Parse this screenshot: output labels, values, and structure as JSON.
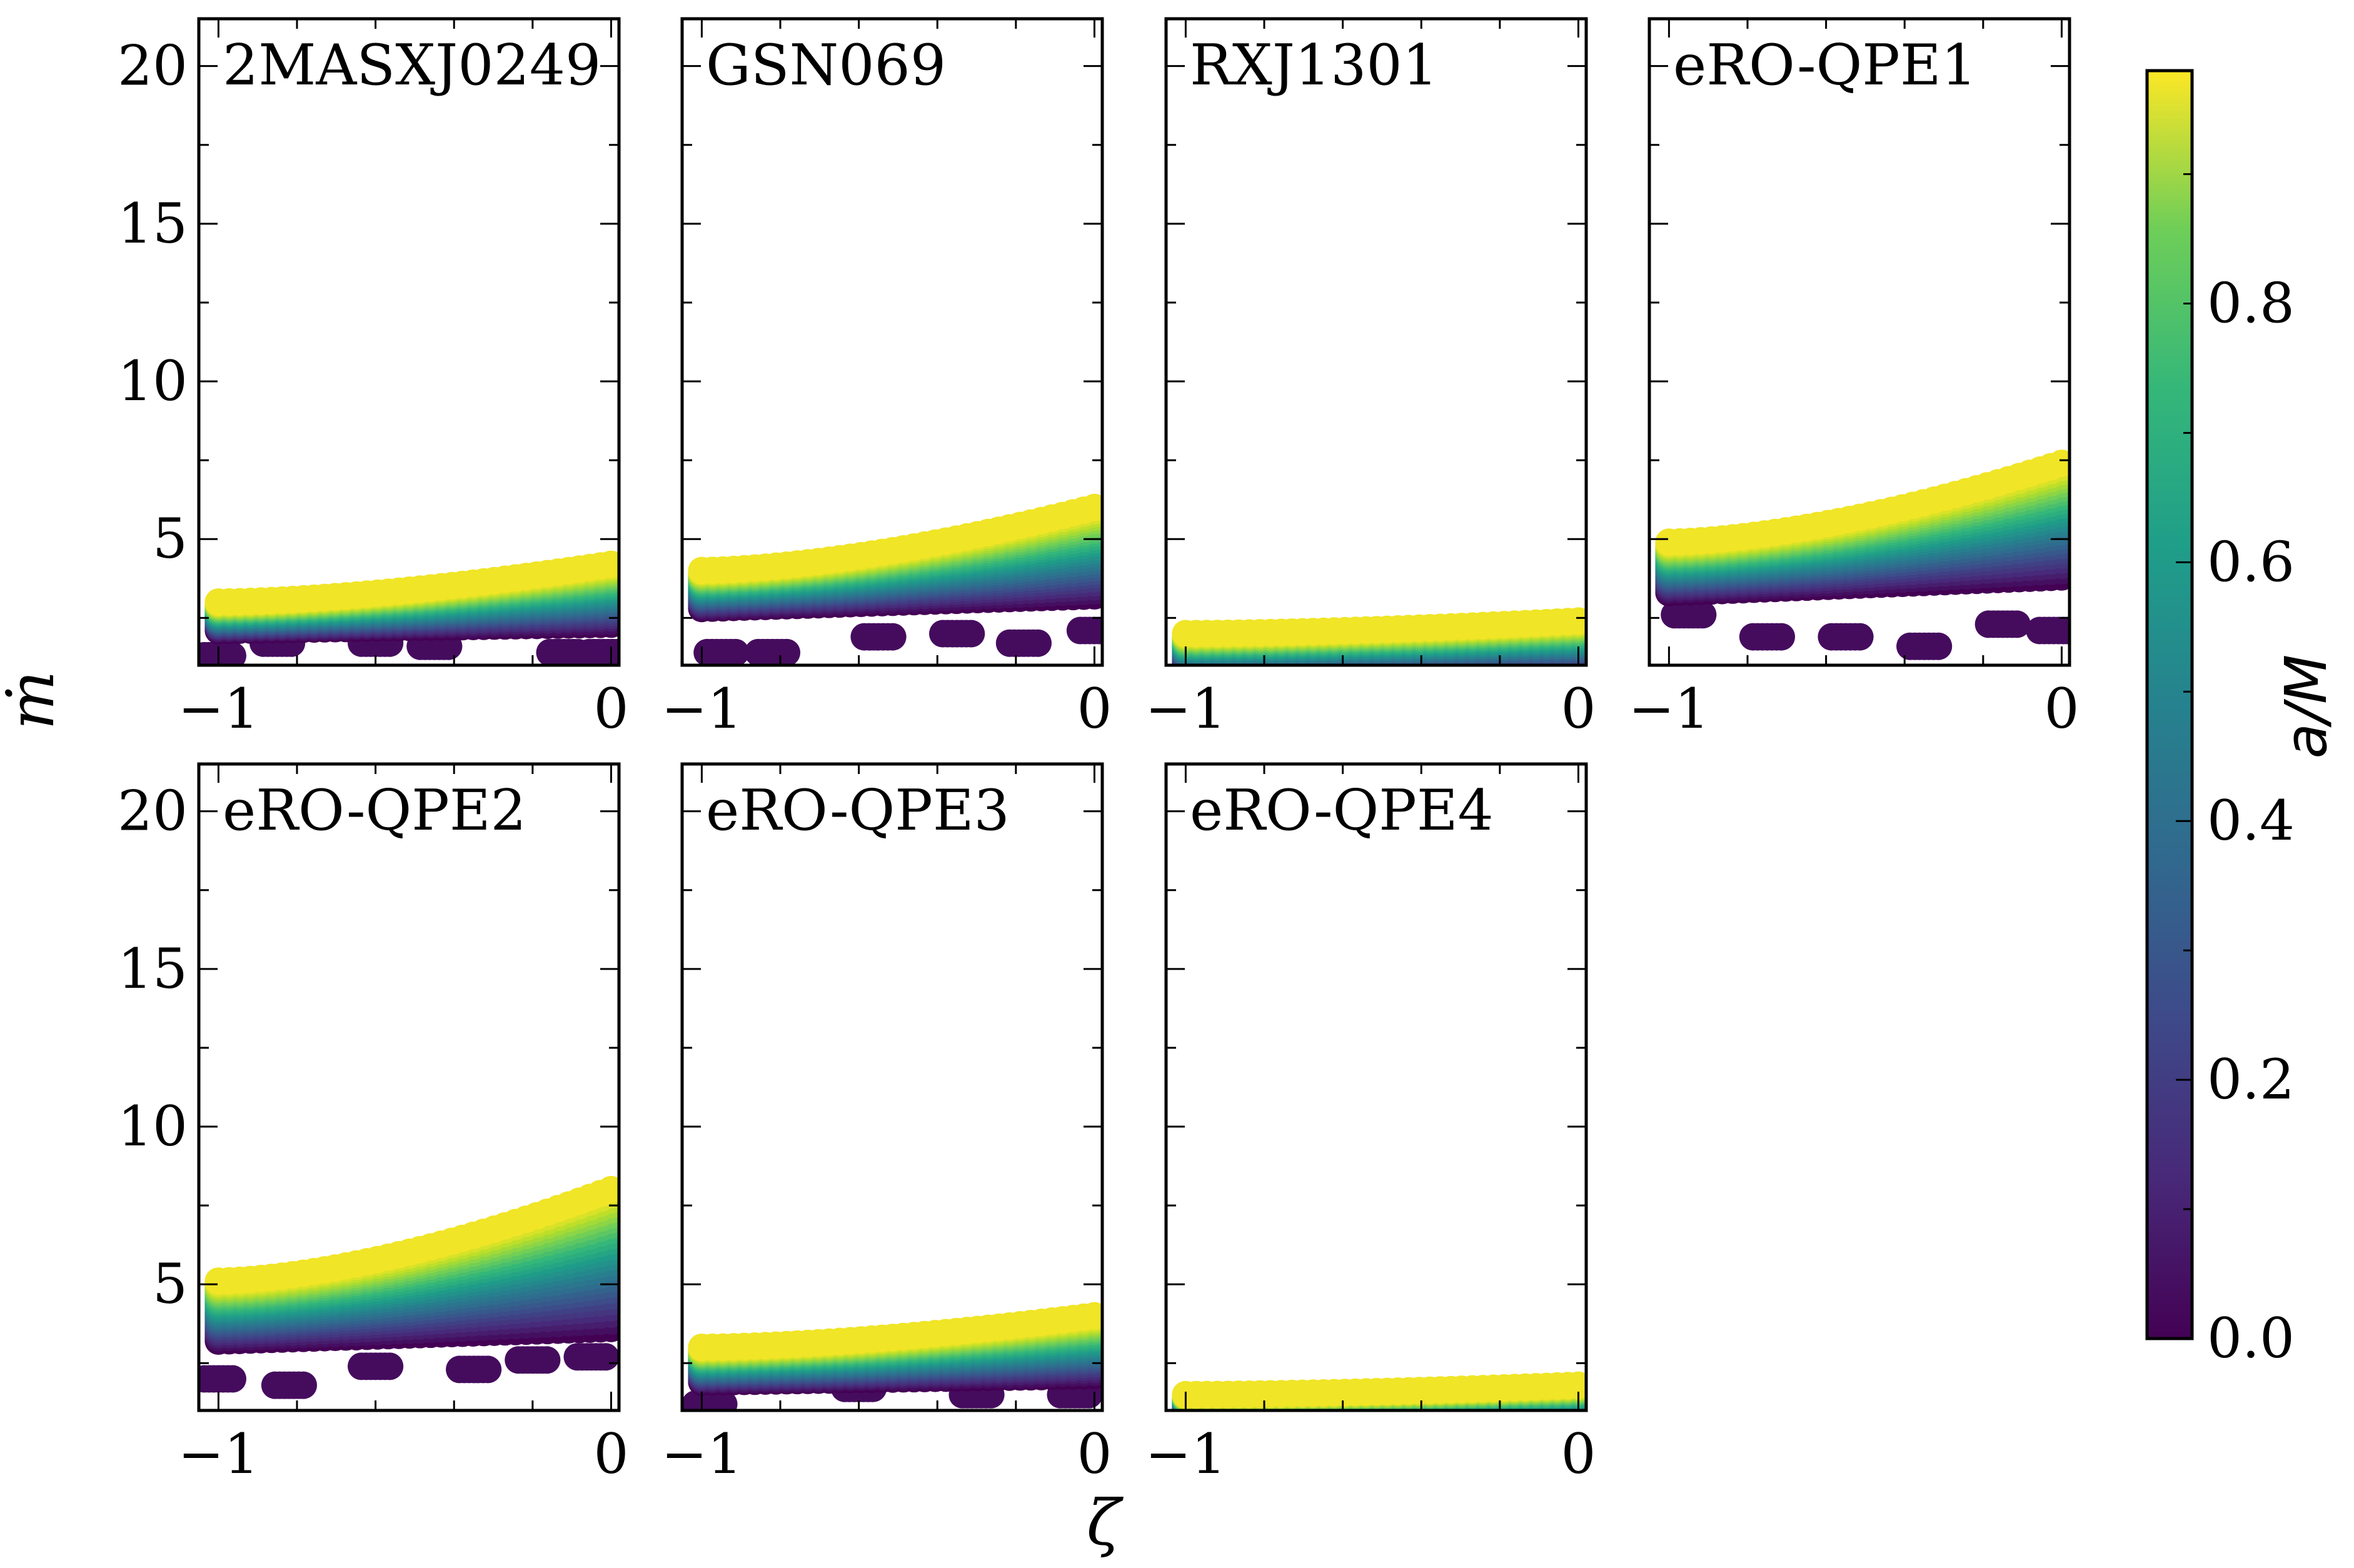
{
  "chart_data": {
    "type": "scatter",
    "xlabel": "ζ",
    "ylabel": "ṁ",
    "xlim": [
      -1.05,
      0.02
    ],
    "ylim": [
      1,
      21.5
    ],
    "xticks": [
      -1,
      0
    ],
    "xtick_labels": [
      "−1",
      "0"
    ],
    "yticks": [
      5,
      10,
      15,
      20
    ],
    "ytick_labels": [
      "5",
      "10",
      "15",
      "20"
    ],
    "colorbar": {
      "label": "a/M",
      "colormap": "viridis",
      "range": [
        0,
        0.98
      ],
      "ticks": [
        0.0,
        0.2,
        0.4,
        0.6,
        0.8
      ],
      "tick_labels": [
        "0.0",
        "0.2",
        "0.4",
        "0.6",
        "0.8"
      ]
    },
    "panels": [
      {
        "name": "2MASXJ0249",
        "mdot_low_at_zeta_-1": 2.1,
        "mdot_high_at_zeta_-1": 3.0,
        "mdot_low_at_zeta_0": 2.3,
        "mdot_high_at_zeta_0": 4.2,
        "low_spin_clusters": [
          [
            -1.0,
            1.3
          ],
          [
            -0.85,
            1.7
          ],
          [
            -0.6,
            1.7
          ],
          [
            -0.45,
            1.6
          ],
          [
            -0.12,
            1.4
          ],
          [
            -0.02,
            1.4
          ]
        ]
      },
      {
        "name": "GSN069",
        "mdot_low_at_zeta_-1": 2.8,
        "mdot_high_at_zeta_-1": 4.0,
        "mdot_low_at_zeta_0": 3.2,
        "mdot_high_at_zeta_0": 6.0,
        "low_spin_clusters": [
          [
            -0.95,
            1.4
          ],
          [
            -0.82,
            1.4
          ],
          [
            -0.55,
            1.9
          ],
          [
            -0.35,
            2.0
          ],
          [
            -0.18,
            1.7
          ],
          [
            0.0,
            2.1
          ]
        ]
      },
      {
        "name": "RXJ1301",
        "mdot_low_at_zeta_-1": 1.0,
        "mdot_high_at_zeta_-1": 2.0,
        "mdot_low_at_zeta_0": 1.1,
        "mdot_high_at_zeta_0": 2.4,
        "low_spin_clusters": []
      },
      {
        "name": "eRO-QPE1",
        "mdot_low_at_zeta_-1": 3.3,
        "mdot_high_at_zeta_-1": 4.9,
        "mdot_low_at_zeta_0": 3.8,
        "mdot_high_at_zeta_0": 7.4,
        "low_spin_clusters": [
          [
            -0.95,
            2.6
          ],
          [
            -0.75,
            1.9
          ],
          [
            -0.55,
            1.9
          ],
          [
            -0.35,
            1.6
          ],
          [
            -0.15,
            2.3
          ],
          [
            -0.02,
            2.1
          ]
        ]
      },
      {
        "name": "eRO-QPE2",
        "mdot_low_at_zeta_-1": 3.2,
        "mdot_high_at_zeta_-1": 5.1,
        "mdot_low_at_zeta_0": 3.6,
        "mdot_high_at_zeta_0": 8.0,
        "low_spin_clusters": [
          [
            -1.0,
            2.0
          ],
          [
            -0.82,
            1.8
          ],
          [
            -0.6,
            2.4
          ],
          [
            -0.35,
            2.3
          ],
          [
            -0.2,
            2.6
          ],
          [
            -0.05,
            2.7
          ]
        ]
      },
      {
        "name": "eRO-QPE3",
        "mdot_low_at_zeta_-1": 1.9,
        "mdot_high_at_zeta_-1": 3.0,
        "mdot_low_at_zeta_0": 2.1,
        "mdot_high_at_zeta_0": 4.0,
        "low_spin_clusters": [
          [
            -0.98,
            1.2
          ],
          [
            -0.6,
            1.7
          ],
          [
            -0.3,
            1.5
          ],
          [
            -0.05,
            1.5
          ]
        ]
      },
      {
        "name": "eRO-QPE4",
        "mdot_low_at_zeta_-1": 1.0,
        "mdot_high_at_zeta_-1": 1.5,
        "mdot_low_at_zeta_0": 1.0,
        "mdot_high_at_zeta_0": 1.8,
        "low_spin_clusters": []
      }
    ]
  }
}
